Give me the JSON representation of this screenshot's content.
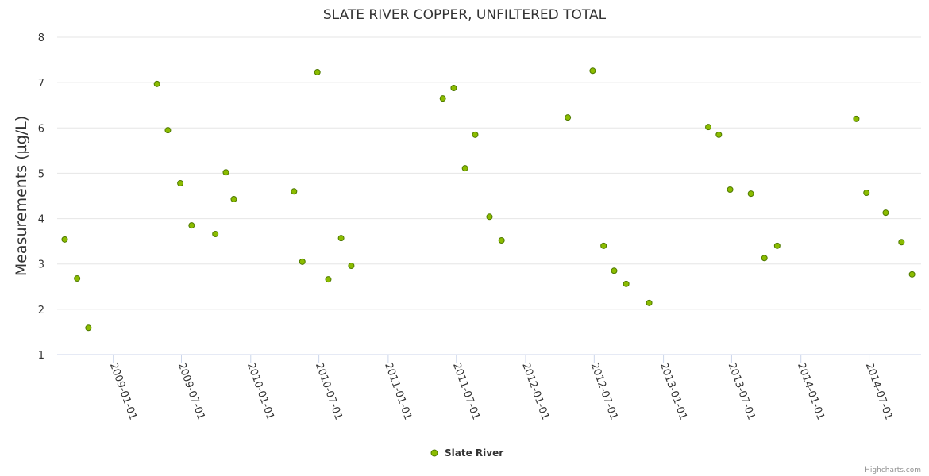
{
  "chart_data": {
    "type": "scatter",
    "title": "SLATE RIVER COPPER, UNFILTERED TOTAL",
    "xlabel": "",
    "ylabel": "Measurements (µg/L)",
    "ylim": [
      1,
      8
    ],
    "yticks": [
      1,
      2,
      3,
      4,
      5,
      6,
      7,
      8
    ],
    "xlim": [
      "2008-08-05",
      "2014-11-16"
    ],
    "xticks": [
      "2009-01-01",
      "2009-07-01",
      "2010-01-01",
      "2010-07-01",
      "2011-01-01",
      "2011-07-01",
      "2012-01-01",
      "2012-07-01",
      "2013-01-01",
      "2013-07-01",
      "2014-01-01",
      "2014-07-01"
    ],
    "grid": true,
    "legend_position": "bottom-center",
    "series": [
      {
        "name": "Slate River",
        "color": "#8bbc00",
        "points": [
          [
            "2008-08-25",
            3.54
          ],
          [
            "2008-09-27",
            2.68
          ],
          [
            "2008-10-27",
            1.59
          ],
          [
            "2009-04-27",
            6.97
          ],
          [
            "2009-05-26",
            5.95
          ],
          [
            "2009-06-28",
            4.78
          ],
          [
            "2009-07-28",
            3.85
          ],
          [
            "2009-09-29",
            3.66
          ],
          [
            "2009-10-27",
            5.02
          ],
          [
            "2009-11-17",
            4.43
          ],
          [
            "2010-04-26",
            4.6
          ],
          [
            "2010-05-18",
            3.05
          ],
          [
            "2010-06-27",
            7.23
          ],
          [
            "2010-07-26",
            2.66
          ],
          [
            "2010-08-29",
            3.57
          ],
          [
            "2010-09-25",
            2.96
          ],
          [
            "2011-05-26",
            6.65
          ],
          [
            "2011-06-24",
            6.88
          ],
          [
            "2011-07-24",
            5.11
          ],
          [
            "2011-08-20",
            5.85
          ],
          [
            "2011-09-27",
            4.04
          ],
          [
            "2011-10-29",
            3.52
          ],
          [
            "2012-04-22",
            6.23
          ],
          [
            "2012-06-27",
            7.26
          ],
          [
            "2012-07-26",
            3.4
          ],
          [
            "2012-08-23",
            2.85
          ],
          [
            "2012-09-24",
            2.56
          ],
          [
            "2012-11-24",
            2.14
          ],
          [
            "2013-04-30",
            6.02
          ],
          [
            "2013-05-28",
            5.85
          ],
          [
            "2013-06-27",
            4.64
          ],
          [
            "2013-08-21",
            4.55
          ],
          [
            "2013-09-26",
            3.13
          ],
          [
            "2013-10-30",
            3.4
          ],
          [
            "2014-05-28",
            6.2
          ],
          [
            "2014-06-24",
            4.57
          ],
          [
            "2014-08-14",
            4.13
          ],
          [
            "2014-09-25",
            3.48
          ],
          [
            "2014-10-23",
            2.77
          ]
        ]
      }
    ],
    "credit": "Highcharts.com"
  }
}
